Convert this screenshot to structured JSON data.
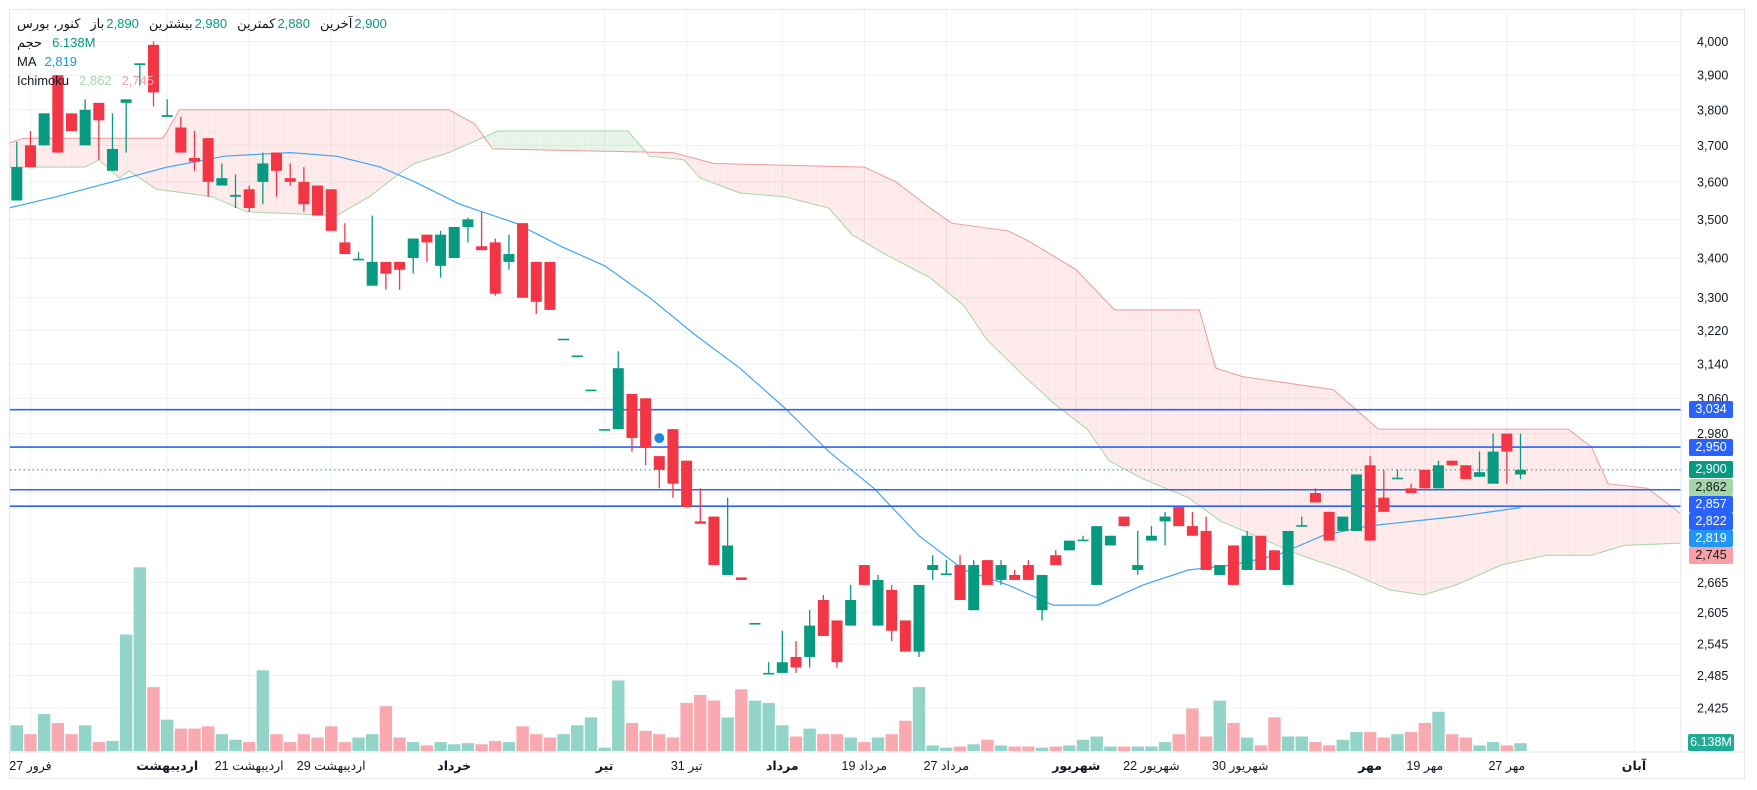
{
  "legend": {
    "symbol": "کنور، بورس",
    "open_label": "باز",
    "open": "2,890",
    "high_label": "بیشترین",
    "high": "2,980",
    "low_label": "کمترین",
    "low": "2,880",
    "close_label": "آخرین",
    "close": "2,900",
    "volume_label": "حجم",
    "volume": "6.138M",
    "ma_label": "MA",
    "ma": "2,819",
    "ichimoku_label": "Ichimoku",
    "ichimoku_a": "2,862",
    "ichimoku_b": "2,745"
  },
  "colors": {
    "up": "#089981",
    "down": "#f23645",
    "volume_up": "#92d5c8",
    "volume_down": "#f9a9b0",
    "ma": "#42a5f5",
    "hline": "#2962ff",
    "span_a": "#a5d6a7",
    "span_b": "#ef9a9a",
    "cloud_up": "rgba(76,175,80,0.12)",
    "cloud_down": "rgba(242,54,69,0.1)",
    "grid": "#f0f1f4"
  },
  "badges": [
    {
      "text": "3,034",
      "price": 3034,
      "bg": "#2962ff",
      "fg": "#ffffff"
    },
    {
      "text": "2,950",
      "price": 2950,
      "bg": "#2962ff",
      "fg": "#ffffff"
    },
    {
      "text": "2,900",
      "price": 2900,
      "bg": "#089981",
      "fg": "#ffffff"
    },
    {
      "text": "2,862",
      "price": 2862,
      "bg": "#a5d6a7",
      "fg": "#131722"
    },
    {
      "text": "2,857",
      "price": 2857,
      "bg": "#2962ff",
      "fg": "#ffffff"
    },
    {
      "text": "2,822",
      "price": 2822,
      "bg": "#2962ff",
      "fg": "#ffffff"
    },
    {
      "text": "2,819",
      "price": 2819,
      "bg": "#2196f3",
      "fg": "#ffffff"
    },
    {
      "text": "2,745",
      "price": 2745,
      "bg": "#f7a1a7",
      "fg": "#131722"
    }
  ],
  "volume_badge": {
    "text": "6.138M",
    "bg": "#22ab94",
    "fg": "#ffffff"
  },
  "chart_data": {
    "type": "candlestick",
    "y_scale": "log",
    "ylim": [
      2365,
      4000
    ],
    "grid": true,
    "y_ticks": [
      4000,
      3900,
      3800,
      3700,
      3600,
      3500,
      3400,
      3300,
      3220,
      3140,
      3060,
      2980,
      2665,
      2605,
      2545,
      2485,
      2425
    ],
    "y_tick_labels": [
      "4,000",
      "3,900",
      "3,800",
      "3,700",
      "3,600",
      "3,500",
      "3,400",
      "3,300",
      "3,220",
      "3,140",
      "3,060",
      "2,980",
      "2,665",
      "2,605",
      "2,545",
      "2,485",
      "2,425"
    ],
    "x_ticks": [
      {
        "bar": 1,
        "label": "27 فرور",
        "bold": false
      },
      {
        "bar": 11,
        "label": "اردیبهشت",
        "bold": true
      },
      {
        "bar": 17,
        "label": "21 اردیبهشت",
        "bold": false
      },
      {
        "bar": 23,
        "label": "29 اردیبهشت",
        "bold": false
      },
      {
        "bar": 32,
        "label": "خرداد",
        "bold": true
      },
      {
        "bar": 43,
        "label": "تیر",
        "bold": true
      },
      {
        "bar": 49,
        "label": "31 تیر",
        "bold": false
      },
      {
        "bar": 56,
        "label": "مرداد",
        "bold": true
      },
      {
        "bar": 62,
        "label": "19 مرداد",
        "bold": false
      },
      {
        "bar": 68,
        "label": "27 مرداد",
        "bold": false
      },
      {
        "bar": 77.5,
        "label": "شهریور",
        "bold": true
      },
      {
        "bar": 83,
        "label": "22 شهریور",
        "bold": false
      },
      {
        "bar": 89.5,
        "label": "30 شهریور",
        "bold": false
      },
      {
        "bar": 99,
        "label": "مهر",
        "bold": true
      },
      {
        "bar": 103,
        "label": "19 مهر",
        "bold": false
      },
      {
        "bar": 109,
        "label": "27 مهر",
        "bold": false
      },
      {
        "bar": 118.3,
        "label": "آبان",
        "bold": true
      }
    ],
    "candles_ohlc": [
      [
        3550,
        3710,
        3550,
        3640
      ],
      [
        3700,
        3740,
        3640,
        3640
      ],
      [
        3700,
        3790,
        3700,
        3790
      ],
      [
        3900,
        3900,
        3680,
        3680
      ],
      [
        3790,
        3790,
        3740,
        3740
      ],
      [
        3700,
        3830,
        3700,
        3800
      ],
      [
        3820,
        3820,
        3660,
        3770
      ],
      [
        3630,
        3790,
        3630,
        3690
      ],
      [
        3820,
        3830,
        3680,
        3830
      ],
      [
        3930,
        3935,
        3870,
        3935
      ],
      [
        3990,
        4000,
        3810,
        3850
      ],
      [
        3780,
        3830,
        3780,
        3785
      ],
      [
        3750,
        3780,
        3680,
        3680
      ],
      [
        3665,
        3740,
        3630,
        3655
      ],
      [
        3720,
        3720,
        3560,
        3600
      ],
      [
        3590,
        3650,
        3590,
        3610
      ],
      [
        3560,
        3620,
        3530,
        3565
      ],
      [
        3580,
        3590,
        3520,
        3530
      ],
      [
        3600,
        3680,
        3540,
        3650
      ],
      [
        3680,
        3680,
        3560,
        3630
      ],
      [
        3610,
        3650,
        3590,
        3600
      ],
      [
        3600,
        3640,
        3520,
        3540
      ],
      [
        3590,
        3590,
        3510,
        3510
      ],
      [
        3580,
        3580,
        3470,
        3470
      ],
      [
        3440,
        3490,
        3410,
        3410
      ],
      [
        3395,
        3415,
        3395,
        3398
      ],
      [
        3330,
        3510,
        3330,
        3390
      ],
      [
        3390,
        3390,
        3320,
        3360
      ],
      [
        3390,
        3390,
        3320,
        3370
      ],
      [
        3400,
        3450,
        3360,
        3450
      ],
      [
        3460,
        3460,
        3390,
        3440
      ],
      [
        3380,
        3470,
        3350,
        3460
      ],
      [
        3400,
        3480,
        3400,
        3480
      ],
      [
        3480,
        3505,
        3440,
        3500
      ],
      [
        3430,
        3520,
        3420,
        3420
      ],
      [
        3440,
        3450,
        3305,
        3310
      ],
      [
        3390,
        3460,
        3370,
        3410
      ],
      [
        3490,
        3490,
        3300,
        3300
      ],
      [
        3390,
        3390,
        3260,
        3290
      ],
      [
        3390,
        3390,
        3270,
        3270
      ],
      [
        3200,
        3200,
        3200,
        3200
      ],
      [
        3160,
        3160,
        3160,
        3160
      ],
      [
        3080,
        3080,
        3080,
        3080
      ],
      [
        2990,
        2990,
        2990,
        2990
      ],
      [
        2990,
        3170,
        2990,
        3130
      ],
      [
        3070,
        3070,
        2940,
        2970
      ],
      [
        3060,
        3060,
        2910,
        2950
      ],
      [
        2930,
        2930,
        2860,
        2900
      ],
      [
        2990,
        2990,
        2840,
        2870
      ],
      [
        2920,
        2920,
        2820,
        2820
      ],
      [
        2790,
        2860,
        2785,
        2785
      ],
      [
        2800,
        2800,
        2700,
        2700
      ],
      [
        2680,
        2840,
        2680,
        2740
      ],
      [
        2675,
        2675,
        2670,
        2670
      ],
      [
        2585,
        2585,
        2585,
        2585
      ],
      [
        2490,
        2510,
        2490,
        2490
      ],
      [
        2490,
        2570,
        2490,
        2510
      ],
      [
        2520,
        2550,
        2490,
        2500
      ],
      [
        2520,
        2610,
        2500,
        2580
      ],
      [
        2630,
        2640,
        2560,
        2560
      ],
      [
        2590,
        2590,
        2500,
        2510
      ],
      [
        2580,
        2660,
        2580,
        2630
      ],
      [
        2700,
        2700,
        2660,
        2660
      ],
      [
        2580,
        2680,
        2580,
        2670
      ],
      [
        2650,
        2660,
        2550,
        2570
      ],
      [
        2590,
        2590,
        2530,
        2530
      ],
      [
        2530,
        2660,
        2520,
        2660
      ],
      [
        2690,
        2720,
        2670,
        2700
      ],
      [
        2680,
        2710,
        2680,
        2683
      ],
      [
        2700,
        2720,
        2630,
        2630
      ],
      [
        2610,
        2710,
        2610,
        2700
      ],
      [
        2710,
        2710,
        2660,
        2660
      ],
      [
        2670,
        2710,
        2660,
        2700
      ],
      [
        2680,
        2690,
        2670,
        2670
      ],
      [
        2700,
        2710,
        2670,
        2670
      ],
      [
        2610,
        2680,
        2590,
        2680
      ],
      [
        2720,
        2730,
        2700,
        2700
      ],
      [
        2730,
        2750,
        2730,
        2750
      ],
      [
        2750,
        2760,
        2750,
        2752
      ],
      [
        2660,
        2780,
        2660,
        2780
      ],
      [
        2740,
        2760,
        2740,
        2760
      ],
      [
        2800,
        2800,
        2780,
        2780
      ],
      [
        2690,
        2770,
        2680,
        2700
      ],
      [
        2750,
        2780,
        2750,
        2760
      ],
      [
        2790,
        2810,
        2740,
        2800
      ],
      [
        2820,
        2820,
        2780,
        2780
      ],
      [
        2780,
        2810,
        2760,
        2760
      ],
      [
        2770,
        2800,
        2690,
        2690
      ],
      [
        2680,
        2700,
        2680,
        2700
      ],
      [
        2740,
        2740,
        2660,
        2660
      ],
      [
        2690,
        2770,
        2690,
        2760
      ],
      [
        2760,
        2760,
        2690,
        2690
      ],
      [
        2730,
        2730,
        2690,
        2690
      ],
      [
        2660,
        2770,
        2660,
        2770
      ],
      [
        2780,
        2800,
        2780,
        2782
      ],
      [
        2850,
        2860,
        2830,
        2830
      ],
      [
        2810,
        2810,
        2750,
        2750
      ],
      [
        2770,
        2800,
        2770,
        2800
      ],
      [
        2770,
        2890,
        2770,
        2890
      ],
      [
        2910,
        2930,
        2750,
        2750
      ],
      [
        2840,
        2900,
        2810,
        2810
      ],
      [
        2880,
        2900,
        2880,
        2883
      ],
      [
        2860,
        2870,
        2850,
        2850
      ],
      [
        2900,
        2900,
        2860,
        2860
      ],
      [
        2860,
        2920,
        2860,
        2910
      ],
      [
        2920,
        2920,
        2910,
        2910
      ],
      [
        2910,
        2910,
        2880,
        2880
      ],
      [
        2885,
        2940,
        2885,
        2895
      ],
      [
        2870,
        2980,
        2870,
        2940
      ],
      [
        2980,
        2980,
        2870,
        2940
      ],
      [
        2890,
        2980,
        2880,
        2900
      ]
    ],
    "volume_millions": [
      20.2,
      13.2,
      29,
      22,
      13.2,
      20.2,
      7,
      7.9,
      91.5,
      144.3,
      50.2,
      24.6,
      17.6,
      17.6,
      19.4,
      13.2,
      8.8,
      7,
      63.4,
      13.2,
      7,
      13.2,
      10.6,
      19.4,
      7,
      10.6,
      13.2,
      35.2,
      10.6,
      7,
      4.4,
      7,
      5.3,
      6.2,
      5.3,
      7.9,
      7,
      19.4,
      13.2,
      10.6,
      13.2,
      20.2,
      26.4,
      2.6,
      55.4,
      22,
      15.8,
      13.2,
      10.6,
      37.8,
      44,
      39.6,
      26.4,
      48.4,
      39.6,
      37.8,
      20.2,
      11.4,
      17.6,
      13.2,
      13.2,
      10.6,
      7,
      10.6,
      13.2,
      23.8,
      50.2,
      4.4,
      2.6,
      3.5,
      5.3,
      8.8,
      4.4,
      3.5,
      3.5,
      2.6,
      3.5,
      4.4,
      8.8,
      11.4,
      3.5,
      3.5,
      3.5,
      3.5,
      7,
      13.2,
      33.4,
      11.4,
      39.6,
      22,
      10.6,
      4.4,
      26.4,
      11.4,
      11.4,
      7,
      4.4,
      8.8,
      15,
      15,
      10.6,
      13.2,
      15,
      22,
      30.8,
      13.2,
      10.6,
      4.4,
      7,
      4.4,
      6.138
    ],
    "ma": [
      [
        -0.6,
        3530
      ],
      [
        2.9,
        3560
      ],
      [
        7,
        3600
      ],
      [
        11,
        3640
      ],
      [
        15.2,
        3670
      ],
      [
        20,
        3680
      ],
      [
        23.4,
        3670
      ],
      [
        26.6,
        3640
      ],
      [
        29.1,
        3600
      ],
      [
        32.4,
        3540
      ],
      [
        36.5,
        3490
      ],
      [
        39.8,
        3430
      ],
      [
        43,
        3380
      ],
      [
        46.3,
        3300
      ],
      [
        49.6,
        3210
      ],
      [
        52.9,
        3130
      ],
      [
        56.1,
        3040
      ],
      [
        59.4,
        2940
      ],
      [
        62.7,
        2860
      ],
      [
        66,
        2760
      ],
      [
        69.3,
        2690
      ],
      [
        72.5,
        2660
      ],
      [
        75.8,
        2620
      ],
      [
        79.1,
        2620
      ],
      [
        82.4,
        2660
      ],
      [
        85.7,
        2690
      ],
      [
        88.9,
        2700
      ],
      [
        92.2,
        2720
      ],
      [
        95.5,
        2760
      ],
      [
        98.8,
        2780
      ],
      [
        102,
        2790
      ],
      [
        105.3,
        2800
      ],
      [
        110,
        2819
      ]
    ],
    "ichimoku_span_a": [
      [
        -1,
        3640
      ],
      [
        5,
        3640
      ],
      [
        6,
        3660
      ],
      [
        7.5,
        3610
      ],
      [
        8.2,
        3630
      ],
      [
        10.2,
        3580
      ],
      [
        12.3,
        3570
      ],
      [
        14.3,
        3560
      ],
      [
        16.8,
        3520
      ],
      [
        23.4,
        3510
      ],
      [
        25.8,
        3560
      ],
      [
        27.9,
        3620
      ],
      [
        29.1,
        3650
      ],
      [
        31.6,
        3680
      ],
      [
        34,
        3720
      ],
      [
        35.2,
        3740
      ],
      [
        44.7,
        3740
      ],
      [
        46.3,
        3670
      ],
      [
        48.8,
        3660
      ],
      [
        50,
        3610
      ],
      [
        52.9,
        3570
      ],
      [
        56.1,
        3560
      ],
      [
        59.4,
        3530
      ],
      [
        61.1,
        3460
      ],
      [
        63.5,
        3410
      ],
      [
        66.8,
        3350
      ],
      [
        69.3,
        3280
      ],
      [
        70.9,
        3200
      ],
      [
        73.4,
        3120
      ],
      [
        75.8,
        3050
      ],
      [
        78.3,
        2990
      ],
      [
        79.9,
        2920
      ],
      [
        82.4,
        2880
      ],
      [
        85.7,
        2840
      ],
      [
        88.1,
        2790
      ],
      [
        90.6,
        2760
      ],
      [
        93.9,
        2720
      ],
      [
        97.1,
        2690
      ],
      [
        100.4,
        2650
      ],
      [
        102.9,
        2640
      ],
      [
        105.3,
        2660
      ],
      [
        108.6,
        2700
      ],
      [
        111.9,
        2720
      ],
      [
        115.2,
        2720
      ],
      [
        117.6,
        2740
      ],
      [
        122,
        2745
      ]
    ],
    "ichimoku_span_b": [
      [
        -1,
        3700
      ],
      [
        0.5,
        3720
      ],
      [
        10.7,
        3720
      ],
      [
        11.9,
        3800
      ],
      [
        31.6,
        3800
      ],
      [
        33.5,
        3760
      ],
      [
        34.8,
        3690
      ],
      [
        48,
        3680
      ],
      [
        51,
        3650
      ],
      [
        62,
        3640
      ],
      [
        64.3,
        3600
      ],
      [
        66.8,
        3530
      ],
      [
        68.4,
        3490
      ],
      [
        72.5,
        3470
      ],
      [
        74.2,
        3440
      ],
      [
        77.5,
        3370
      ],
      [
        80.3,
        3270
      ],
      [
        86.5,
        3270
      ],
      [
        87.7,
        3130
      ],
      [
        89.7,
        3110
      ],
      [
        96.3,
        3080
      ],
      [
        99.6,
        2990
      ],
      [
        113.5,
        2990
      ],
      [
        115.2,
        2950
      ],
      [
        116.4,
        2870
      ],
      [
        119.3,
        2860
      ],
      [
        122,
        2800
      ]
    ],
    "horizontal_lines": [
      3034,
      2950,
      2857,
      2822
    ],
    "last_price": 2900,
    "markers": [
      {
        "bar": 47,
        "price": 2970
      }
    ]
  }
}
